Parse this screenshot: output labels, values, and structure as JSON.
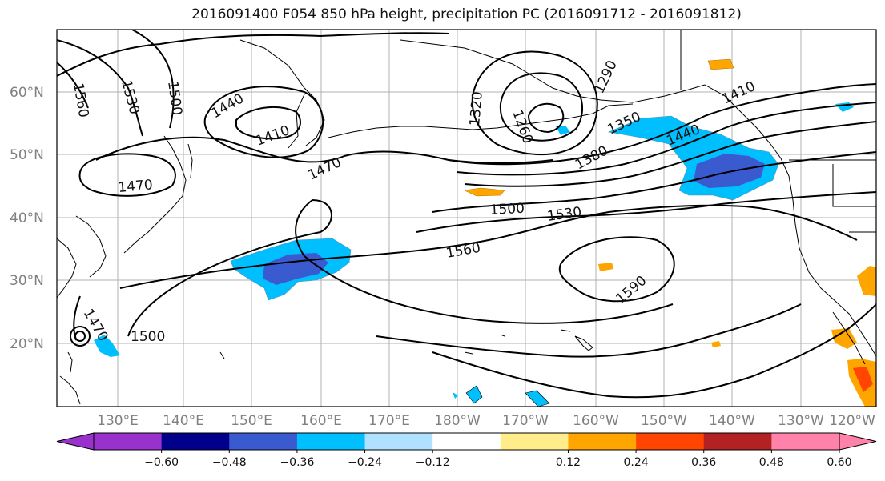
{
  "title": "2016091400 F054 850 hPa height, precipitation PC (2016091712 - 2016091812)",
  "axes": {
    "lat_labels": [
      "60°N",
      "50°N",
      "40°N",
      "30°N",
      "20°N"
    ],
    "lon_labels": [
      "130°E",
      "140°E",
      "150°E",
      "160°E",
      "170°E",
      "180°W",
      "170°W",
      "160°W",
      "150°W",
      "140°W",
      "130°W",
      "120°W"
    ]
  },
  "contour_labels": [
    "1560",
    "1530",
    "1500",
    "1440",
    "1410",
    "1470",
    "1320",
    "1290",
    "1260",
    "1350",
    "1380",
    "1410",
    "1440",
    "1470",
    "1500",
    "1530",
    "1560",
    "1590",
    "1470",
    "1500"
  ],
  "colorbar": {
    "colors": [
      "#9932cc",
      "#00008b",
      "#3a5bd0",
      "#00bfff",
      "#b0e2ff",
      "#ffffff",
      "#ffec8b",
      "#ffa500",
      "#ff4500",
      "#b22222",
      "#ff82ab"
    ],
    "tick_labels": [
      "−0.60",
      "−0.48",
      "−0.36",
      "−0.24",
      "−0.12",
      "0.12",
      "0.24",
      "0.36",
      "0.48",
      "0.60"
    ]
  }
}
